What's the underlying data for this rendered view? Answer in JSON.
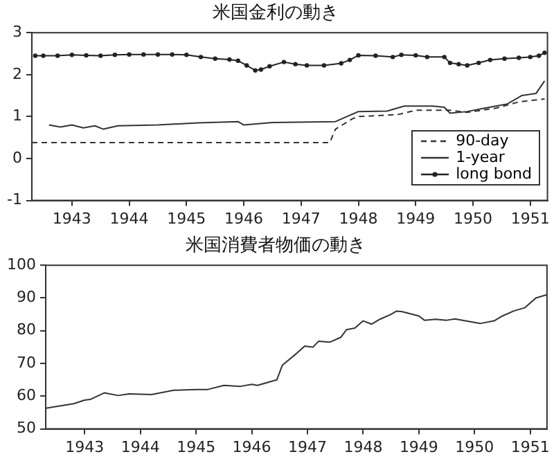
{
  "chart_data": [
    {
      "type": "line",
      "title": "米国金利の動き",
      "xlim": [
        1942.3,
        1951.3
      ],
      "xticks": [
        1943,
        1944,
        1945,
        1946,
        1947,
        1948,
        1949,
        1950,
        1951
      ],
      "ylim": [
        -1,
        3
      ],
      "yticks": [
        -1,
        0,
        1,
        2,
        3
      ],
      "grid": false,
      "legend": "bottom right",
      "series": [
        {
          "name": "90-day",
          "color": "#333333",
          "line_style": "dashed",
          "marker": "none",
          "x": [
            1942.3,
            1943.5,
            1945.0,
            1946.5,
            1947.5,
            1947.6,
            1947.9,
            1948.0,
            1948.7,
            1949.0,
            1949.6,
            1949.9,
            1950.4,
            1950.8,
            1951.25
          ],
          "values": [
            0.38,
            0.38,
            0.38,
            0.38,
            0.38,
            0.7,
            0.95,
            1.0,
            1.05,
            1.15,
            1.15,
            1.1,
            1.2,
            1.35,
            1.42
          ]
        },
        {
          "name": "1-year",
          "color": "#333333",
          "line_style": "solid",
          "marker": "none",
          "x": [
            1942.6,
            1942.8,
            1943.0,
            1943.2,
            1943.4,
            1943.55,
            1943.8,
            1944.5,
            1945.2,
            1945.9,
            1946.0,
            1946.5,
            1947.6,
            1947.8,
            1948.0,
            1948.5,
            1948.8,
            1949.3,
            1949.5,
            1949.6,
            1949.9,
            1950.2,
            1950.6,
            1950.85,
            1951.1,
            1951.25
          ],
          "values": [
            0.8,
            0.75,
            0.8,
            0.73,
            0.78,
            0.7,
            0.78,
            0.8,
            0.85,
            0.88,
            0.8,
            0.86,
            0.88,
            1.0,
            1.12,
            1.13,
            1.25,
            1.25,
            1.22,
            1.08,
            1.12,
            1.2,
            1.3,
            1.5,
            1.55,
            1.85
          ]
        },
        {
          "name": "long bond",
          "color": "#222222",
          "line_style": "solid",
          "marker": "circle",
          "x": [
            1942.36,
            1942.5,
            1942.75,
            1943.0,
            1943.25,
            1943.5,
            1943.75,
            1944.0,
            1944.25,
            1944.5,
            1944.75,
            1945.0,
            1945.25,
            1945.5,
            1945.75,
            1945.9,
            1946.05,
            1946.2,
            1946.3,
            1946.45,
            1946.7,
            1946.9,
            1947.1,
            1947.4,
            1947.7,
            1947.85,
            1948.0,
            1948.3,
            1948.6,
            1948.75,
            1949.0,
            1949.2,
            1949.5,
            1949.6,
            1949.75,
            1949.9,
            1950.1,
            1950.3,
            1950.55,
            1950.8,
            1951.0,
            1951.15,
            1951.25
          ],
          "values": [
            2.45,
            2.45,
            2.45,
            2.47,
            2.46,
            2.45,
            2.47,
            2.48,
            2.48,
            2.48,
            2.48,
            2.47,
            2.42,
            2.38,
            2.36,
            2.33,
            2.22,
            2.1,
            2.12,
            2.2,
            2.3,
            2.25,
            2.22,
            2.22,
            2.27,
            2.35,
            2.46,
            2.45,
            2.42,
            2.47,
            2.46,
            2.42,
            2.42,
            2.28,
            2.25,
            2.22,
            2.28,
            2.35,
            2.38,
            2.4,
            2.42,
            2.45,
            2.52
          ]
        }
      ]
    },
    {
      "type": "line",
      "title": "米国消費者物価の動き",
      "xlim": [
        1942.3,
        1951.3
      ],
      "xticks": [
        1943,
        1944,
        1945,
        1946,
        1947,
        1948,
        1949,
        1950,
        1951
      ],
      "ylim": [
        50,
        100
      ],
      "yticks": [
        50,
        60,
        70,
        80,
        90,
        100
      ],
      "grid": false,
      "series": [
        {
          "color": "#333333",
          "line_style": "solid",
          "marker": "none",
          "x": [
            1942.3,
            1942.8,
            1943.0,
            1943.1,
            1943.35,
            1943.6,
            1943.8,
            1944.2,
            1944.6,
            1945.0,
            1945.2,
            1945.5,
            1945.8,
            1946.0,
            1946.1,
            1946.45,
            1946.55,
            1946.8,
            1946.95,
            1947.1,
            1947.2,
            1947.4,
            1947.6,
            1947.7,
            1947.85,
            1948.0,
            1948.15,
            1948.3,
            1948.5,
            1948.6,
            1948.7,
            1949.0,
            1949.1,
            1949.3,
            1949.5,
            1949.65,
            1949.8,
            1950.1,
            1950.35,
            1950.5,
            1950.7,
            1950.9,
            1951.1,
            1951.3
          ],
          "values": [
            56.3,
            57.7,
            58.8,
            59,
            61,
            60.2,
            60.7,
            60.5,
            61.8,
            62,
            62,
            63.3,
            63,
            63.6,
            63.3,
            65,
            69.5,
            73,
            75.3,
            75,
            76.8,
            76.5,
            78,
            80.3,
            80.8,
            83,
            82,
            83.5,
            85,
            86,
            85.8,
            84.5,
            83.2,
            83.5,
            83.2,
            83.6,
            83.1,
            82.2,
            83,
            84.5,
            86,
            87,
            90,
            91
          ]
        }
      ]
    }
  ]
}
